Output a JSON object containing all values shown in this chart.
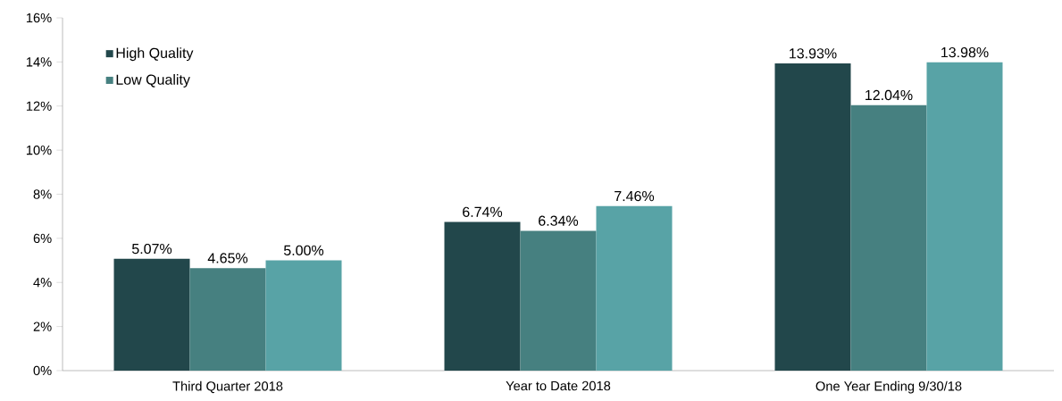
{
  "chart_data": {
    "type": "bar",
    "categories": [
      "Third Quarter 2018",
      "Year to Date 2018",
      "One Year Ending 9/30/18"
    ],
    "series": [
      {
        "name": "High Quality",
        "color": "#22474b",
        "values": [
          5.07,
          6.74,
          13.93
        ],
        "value_labels": [
          "5.07%",
          "6.74%",
          "13.93%"
        ]
      },
      {
        "name": "Low Quality",
        "color": "#468080",
        "values": [
          4.65,
          6.34,
          12.04
        ],
        "value_labels": [
          "4.65%",
          "6.34%",
          "12.04%"
        ]
      },
      {
        "color": "#58a3a6",
        "values": [
          5.0,
          7.46,
          13.98
        ],
        "value_labels": [
          "5.00%",
          "7.46%",
          "13.98%"
        ]
      }
    ],
    "ylim": [
      0,
      16
    ],
    "yticks": [
      {
        "value": 0,
        "label": "0%"
      },
      {
        "value": 2,
        "label": "2%"
      },
      {
        "value": 4,
        "label": "4%"
      },
      {
        "value": 6,
        "label": "6%"
      },
      {
        "value": 8,
        "label": "8%"
      },
      {
        "value": 10,
        "label": "10%"
      },
      {
        "value": 12,
        "label": "12%"
      },
      {
        "value": 14,
        "label": "14%"
      },
      {
        "value": 16,
        "label": "16%"
      }
    ],
    "grid": false,
    "legend": "top left"
  }
}
